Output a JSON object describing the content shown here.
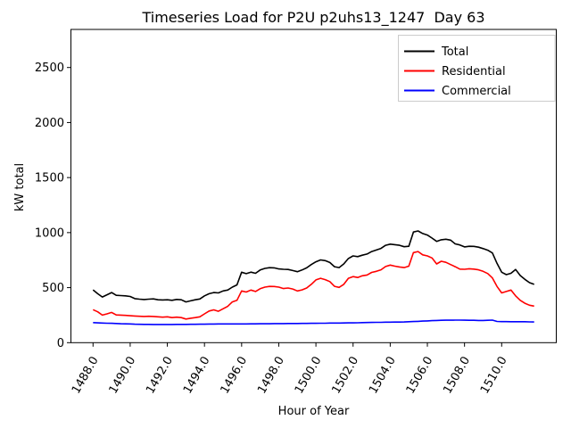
{
  "figure": {
    "background": "#ffffff",
    "spine_color": "#000000"
  },
  "chart_data": {
    "type": "line",
    "title": "Timeseries Load for P2U p2uhs13_1247  Day 63",
    "xlabel": "Hour of Year",
    "ylabel": "kW total",
    "xlim": [
      1486.81,
      1512.94
    ],
    "ylim": [
      0,
      2846
    ],
    "grid": false,
    "legend_position": "upper right",
    "x_tick_values": [
      1488,
      1490,
      1492,
      1494,
      1496,
      1498,
      1500,
      1502,
      1504,
      1506,
      1508,
      1510
    ],
    "x_tick_labels": [
      "1488.0",
      "1490.0",
      "1492.0",
      "1494.0",
      "1496.0",
      "1498.0",
      "1500.0",
      "1502.0",
      "1504.0",
      "1506.0",
      "1508.0",
      "1510.0"
    ],
    "y_tick_values": [
      0,
      500,
      1000,
      1500,
      2000,
      2500
    ],
    "y_tick_labels": [
      "0",
      "500",
      "1000",
      "1500",
      "2000",
      "2500"
    ],
    "x_start": 1488.0,
    "x_step": 0.25,
    "series": [
      {
        "name": "Total",
        "color": "#000000",
        "values": [
          480,
          445,
          415,
          435,
          455,
          430,
          428,
          425,
          420,
          400,
          395,
          392,
          395,
          398,
          390,
          388,
          390,
          385,
          393,
          390,
          370,
          380,
          390,
          397,
          425,
          445,
          455,
          452,
          470,
          478,
          505,
          525,
          640,
          627,
          641,
          630,
          660,
          675,
          681,
          680,
          670,
          667,
          665,
          655,
          645,
          660,
          680,
          710,
          735,
          752,
          745,
          728,
          690,
          682,
          715,
          765,
          788,
          782,
          795,
          805,
          828,
          842,
          856,
          885,
          895,
          890,
          885,
          872,
          876,
          1005,
          1015,
          992,
          978,
          950,
          920,
          935,
          940,
          932,
          898,
          888,
          870,
          876,
          875,
          868,
          855,
          840,
          815,
          720,
          640,
          618,
          630,
          665,
          610,
          575,
          545,
          530
        ]
      },
      {
        "name": "Residential",
        "color": "#ff0000",
        "values": [
          300,
          280,
          250,
          262,
          275,
          252,
          250,
          248,
          245,
          242,
          240,
          238,
          240,
          238,
          235,
          232,
          235,
          228,
          232,
          228,
          215,
          222,
          228,
          235,
          262,
          288,
          298,
          285,
          308,
          330,
          370,
          385,
          470,
          460,
          478,
          465,
          490,
          505,
          511,
          510,
          505,
          492,
          497,
          488,
          470,
          480,
          497,
          530,
          570,
          585,
          573,
          555,
          512,
          502,
          530,
          585,
          600,
          592,
          608,
          615,
          638,
          648,
          662,
          692,
          705,
          695,
          688,
          682,
          695,
          818,
          828,
          798,
          788,
          770,
          715,
          740,
          730,
          710,
          690,
          668,
          667,
          672,
          668,
          662,
          648,
          628,
          588,
          510,
          452,
          465,
          478,
          425,
          385,
          358,
          340,
          332
        ]
      },
      {
        "name": "Commercial",
        "color": "#0000ff",
        "values": [
          182,
          180,
          178,
          177,
          176,
          174,
          172,
          171,
          170,
          168,
          167,
          166,
          166,
          165,
          165,
          165,
          165,
          165,
          166,
          166,
          166,
          167,
          167,
          168,
          168,
          169,
          169,
          170,
          170,
          170,
          170,
          170,
          170,
          170,
          171,
          171,
          172,
          172,
          172,
          173,
          173,
          173,
          174,
          174,
          174,
          175,
          175,
          176,
          176,
          177,
          177,
          178,
          178,
          178,
          179,
          180,
          180,
          181,
          182,
          183,
          184,
          185,
          185,
          186,
          186,
          187,
          187,
          188,
          190,
          192,
          194,
          196,
          198,
          200,
          202,
          203,
          204,
          204,
          205,
          205,
          204,
          203,
          203,
          202,
          202,
          203,
          205,
          193,
          191,
          191,
          190,
          190,
          190,
          190,
          189,
          188
        ]
      }
    ]
  }
}
